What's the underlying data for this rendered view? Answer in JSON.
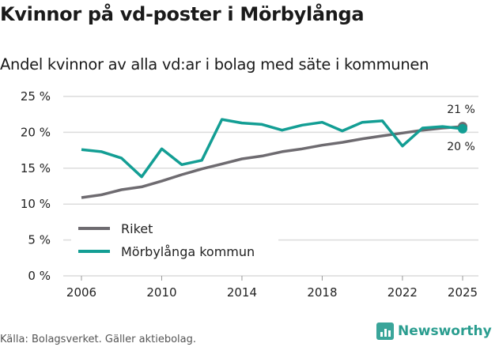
{
  "title": "Kvinnor på vd-poster i Mörbylånga",
  "subtitle": "Andel kvinnor av alla vd:ar i bolag med säte i kommunen",
  "source": "Källa: Bolagsverket. Gäller aktiebolag.",
  "logo": "Newsworthy",
  "chart_data": {
    "type": "line",
    "x": [
      2006,
      2007,
      2008,
      2009,
      2010,
      2011,
      2012,
      2013,
      2014,
      2015,
      2016,
      2017,
      2018,
      2019,
      2020,
      2021,
      2022,
      2023,
      2024,
      2025
    ],
    "series": [
      {
        "name": "Riket",
        "color": "#6e6b70",
        "values": [
          10.9,
          11.3,
          12.0,
          12.4,
          13.2,
          14.1,
          14.9,
          15.6,
          16.3,
          16.7,
          17.3,
          17.7,
          18.2,
          18.6,
          19.1,
          19.5,
          19.9,
          20.3,
          20.6,
          20.8
        ],
        "end_label": "21 %"
      },
      {
        "name": "Mörbylånga kommun",
        "color": "#139e94",
        "values": [
          17.6,
          17.3,
          16.4,
          13.8,
          17.7,
          15.5,
          16.1,
          21.8,
          21.3,
          21.1,
          20.3,
          21.0,
          21.4,
          20.2,
          21.4,
          21.6,
          18.1,
          20.6,
          20.8,
          20.5
        ],
        "end_label": "20 %"
      }
    ],
    "ylim": [
      0,
      25
    ],
    "yticks": [
      0,
      5,
      10,
      15,
      20,
      25
    ],
    "ytick_labels": [
      "0 %",
      "5 %",
      "10 %",
      "15 %",
      "20 %",
      "25 %"
    ],
    "xticks": [
      2006,
      2010,
      2014,
      2018,
      2022,
      2025
    ],
    "xtick_labels": [
      "2006",
      "2010",
      "2014",
      "2018",
      "2022",
      "2025"
    ],
    "grid": true,
    "legend": "bottom-left"
  }
}
